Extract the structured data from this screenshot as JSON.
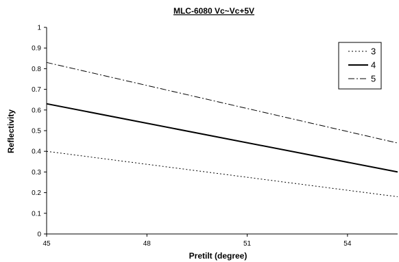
{
  "chart_data": {
    "type": "line",
    "title": "MLC-6080   Vc~Vc+5V",
    "xlabel": "Pretilt (degree)",
    "ylabel": "Reflectivity",
    "xlim": [
      45,
      55.5
    ],
    "ylim": [
      0,
      1
    ],
    "x_ticks": [
      "45",
      "48",
      "51",
      "54"
    ],
    "y_ticks": [
      "0",
      "0.1",
      "0.2",
      "0.3",
      "0.4",
      "0.5",
      "0.6",
      "0.7",
      "0.8",
      "0.9",
      "1"
    ],
    "grid": false,
    "legend_position": "top-right",
    "series": [
      {
        "name": "3",
        "style": "dotted",
        "color": "#000000",
        "x": [
          45,
          55.5
        ],
        "y": [
          0.4,
          0.18
        ]
      },
      {
        "name": "4",
        "style": "solid",
        "color": "#000000",
        "x": [
          45,
          55.5
        ],
        "y": [
          0.63,
          0.3
        ]
      },
      {
        "name": "5",
        "style": "dash-dot",
        "color": "#000000",
        "x": [
          45,
          55.5
        ],
        "y": [
          0.83,
          0.44
        ]
      }
    ]
  }
}
